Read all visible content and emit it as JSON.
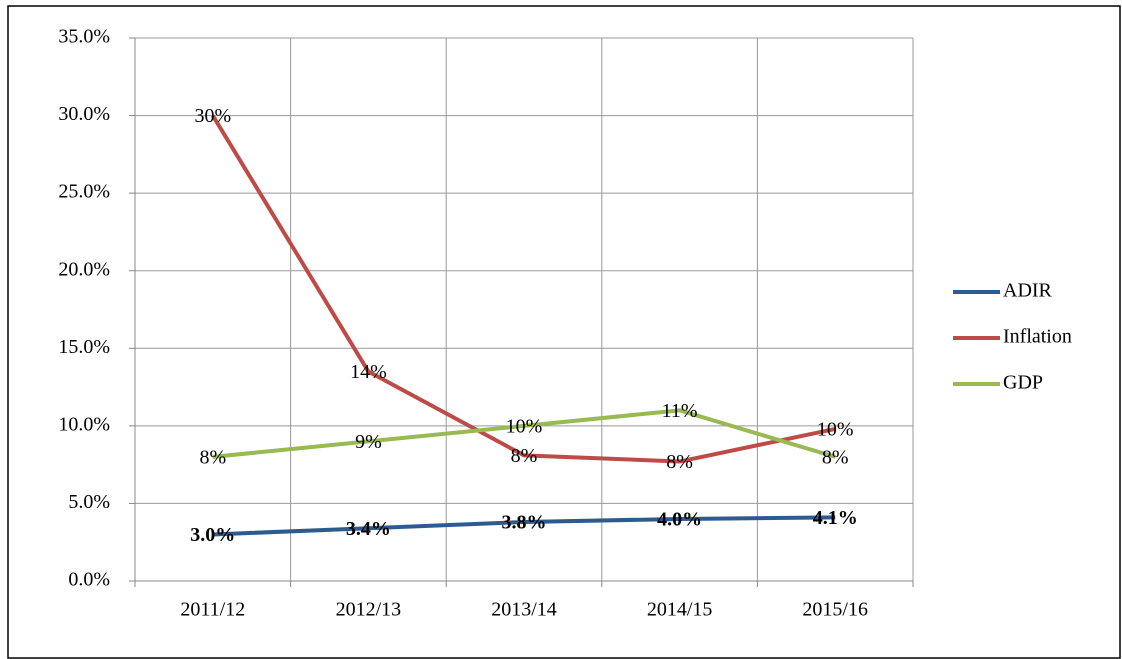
{
  "chart_data": {
    "type": "line",
    "categories": [
      "2011/12",
      "2012/13",
      "2013/14",
      "2014/15",
      "2015/16"
    ],
    "series": [
      {
        "name": "ADIR",
        "color": "#2e5b8f",
        "values": [
          3.0,
          3.4,
          3.8,
          4.0,
          4.1
        ],
        "value_labels": [
          "3.0%",
          "3.4%",
          "3.8%",
          "4.0%",
          "4.1%"
        ]
      },
      {
        "name": "Inflation",
        "color": "#be4b48",
        "values": [
          30,
          13.5,
          8.1,
          7.7,
          9.8
        ],
        "value_labels": [
          "30%",
          "14%",
          "8%",
          "8%",
          "10%"
        ]
      },
      {
        "name": "GDP",
        "color": "#98b954",
        "values": [
          8,
          9,
          10,
          11,
          8
        ],
        "value_labels": [
          "8%",
          "9%",
          "10%",
          "11%",
          "8%"
        ]
      }
    ],
    "ylim": [
      0,
      35
    ],
    "yticks": [
      {
        "value": 0,
        "label": "0.0%"
      },
      {
        "value": 5,
        "label": "5.0%"
      },
      {
        "value": 10,
        "label": "10.0%"
      },
      {
        "value": 15,
        "label": "15.0%"
      },
      {
        "value": 20,
        "label": "20.0%"
      },
      {
        "value": 25,
        "label": "25.0%"
      },
      {
        "value": 30,
        "label": "30.0%"
      },
      {
        "value": 35,
        "label": "35.0%"
      }
    ],
    "grid": true,
    "legend": "right"
  }
}
